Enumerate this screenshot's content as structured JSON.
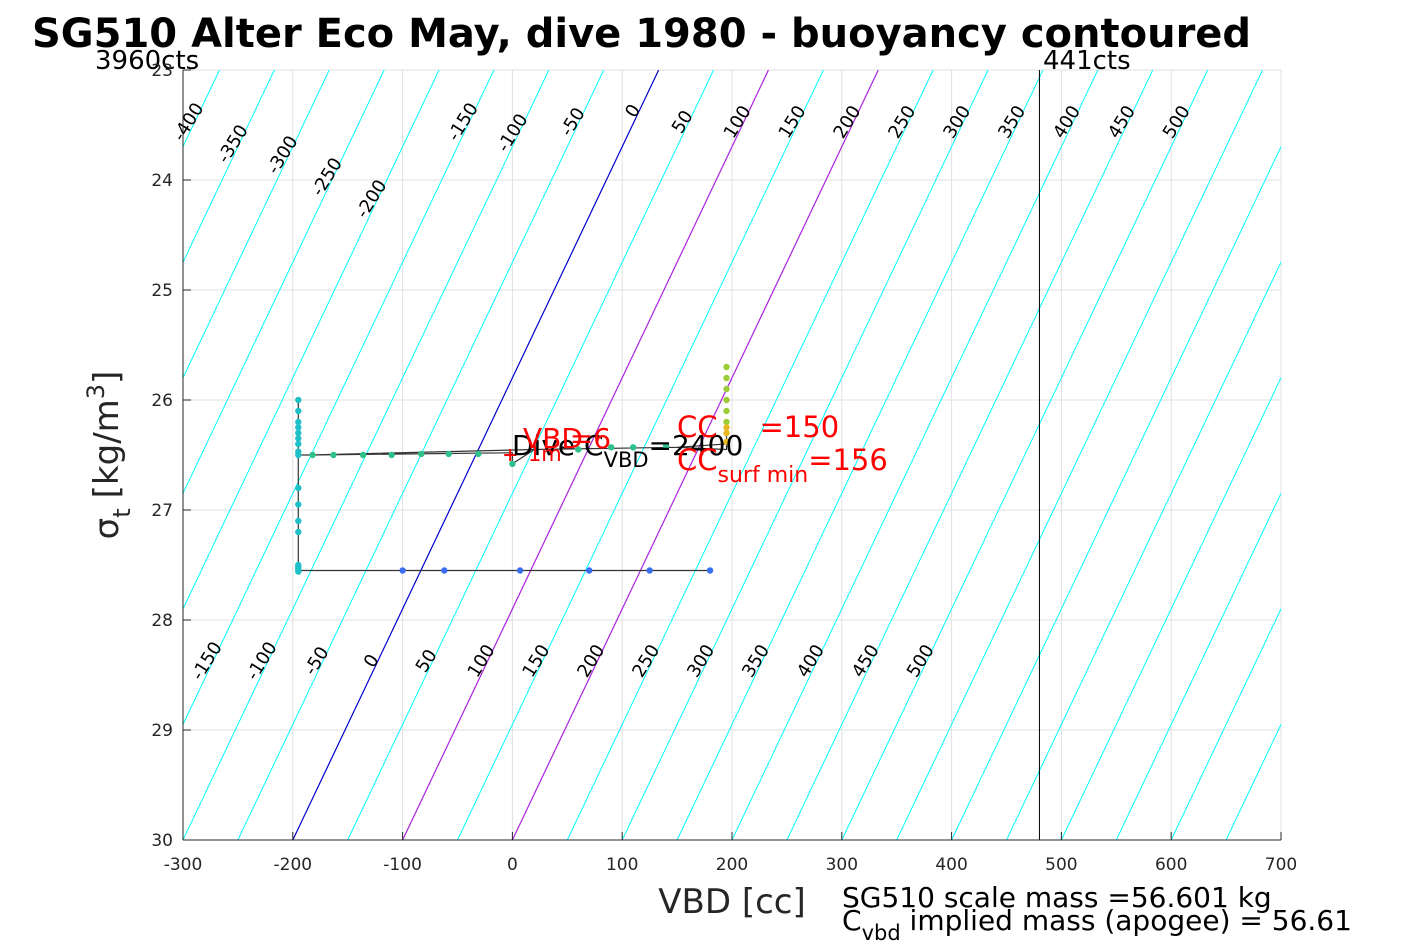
{
  "colors": {
    "contour": "#00ffff",
    "zero_line": "#0000cd",
    "magenta_line": "#aa22dd",
    "grid": "#e0e0e0",
    "red": "#ff0000"
  },
  "chart_data": {
    "type": "scatter",
    "title": "SG510 Alter Eco May, dive 1980 - buoyancy contoured",
    "xlabel": "VBD [cc]",
    "ylabel_main": "σ",
    "ylabel_sub": "t",
    "ylabel_units": "[kg/m",
    "ylabel_sup": "3",
    "ylabel_close": "]",
    "xlim": [
      -300,
      700
    ],
    "ylim": [
      23,
      30
    ],
    "y_reversed": true,
    "grid": true,
    "x_ticks": [
      -300,
      -200,
      -100,
      0,
      100,
      200,
      300,
      400,
      500,
      600,
      700
    ],
    "x_tick_labels": [
      "-300",
      "-200",
      "-100",
      "0",
      "100",
      "200",
      "300",
      "400",
      "500",
      "600",
      "700"
    ],
    "y_ticks": [
      23,
      24,
      25,
      26,
      27,
      28,
      29,
      30
    ],
    "y_tick_labels": [
      "23",
      "24",
      "25",
      "26",
      "27",
      "28",
      "29",
      "30"
    ],
    "corner_labels": {
      "left": "3960cts",
      "right": "441cts"
    },
    "vline_x": 480,
    "contour_slope_cc_per_sigma": -47.6,
    "contour_values": [
      -400,
      -350,
      -300,
      -250,
      -200,
      -150,
      -100,
      -50,
      0,
      50,
      100,
      150,
      200,
      250,
      300,
      350,
      400,
      450,
      500,
      550,
      600,
      650,
      700,
      750,
      800,
      850,
      900
    ],
    "zero_contour_value": 0,
    "magenta_contour_values": [
      100,
      200
    ],
    "contour_labels_top": {
      "sigma": 23.6,
      "values": [
        -400,
        -350,
        -300,
        -250,
        -200,
        -150,
        -100,
        -50,
        0,
        50,
        100,
        150,
        200,
        250,
        300,
        350,
        400,
        450,
        500
      ],
      "texts": [
        "-400",
        "-350",
        "-300",
        "-250",
        "-200",
        "-150",
        "-100",
        "-50",
        "0",
        "50",
        "100",
        "150",
        "200",
        "250",
        "300",
        "350",
        "400",
        "450",
        "500"
      ],
      "sigmas": [
        23.5,
        23.7,
        23.8,
        24.0,
        24.2,
        23.5,
        23.6,
        23.5,
        23.4,
        23.5,
        23.5,
        23.5,
        23.5,
        23.5,
        23.5,
        23.5,
        23.5,
        23.5,
        23.5
      ]
    },
    "contour_labels_bottom": {
      "values": [
        -150,
        -100,
        -50,
        0,
        50,
        100,
        150,
        200,
        250,
        300,
        350,
        400,
        450,
        500
      ],
      "texts": [
        "-150",
        "-100",
        "-50",
        "0",
        "50",
        "100",
        "150",
        "200",
        "250",
        "300",
        "350",
        "400",
        "450",
        "500"
      ],
      "sigma": 28.4
    },
    "profile_line": {
      "x": [
        -195,
        -195,
        -185,
        0,
        0,
        20,
        150,
        195,
        195,
        195,
        150,
        20,
        -185,
        -195,
        -195,
        -195,
        180
      ],
      "y": [
        26.0,
        26.5,
        26.5,
        26.48,
        26.58,
        26.45,
        26.43,
        26.45,
        26.3,
        26.4,
        26.43,
        26.45,
        26.5,
        26.5,
        27.2,
        27.55,
        27.55
      ]
    },
    "series": [
      {
        "color": "#20c0c8",
        "x": [
          -195,
          -195,
          -195,
          -195,
          -195,
          -195,
          -195,
          -195,
          -195,
          -195,
          -195,
          -195,
          -195,
          -195,
          -195,
          -195,
          -195
        ],
        "y": [
          26.0,
          26.1,
          26.2,
          26.3,
          26.4,
          26.47,
          26.5,
          26.8,
          26.95,
          27.1,
          27.2,
          27.5,
          27.52,
          27.54,
          27.56,
          26.25,
          26.35
        ]
      },
      {
        "color": "#2ec28a",
        "x": [
          -182,
          -163,
          -136,
          -110,
          -83,
          -58,
          -31,
          0,
          60,
          90,
          110,
          140
        ],
        "y": [
          26.5,
          26.5,
          26.5,
          26.5,
          26.49,
          26.49,
          26.49,
          26.58,
          26.45,
          26.43,
          26.43,
          26.42
        ]
      },
      {
        "color": "#3a6ef0",
        "x": [
          -100,
          -62,
          7,
          70,
          125,
          180
        ],
        "y": [
          27.55,
          27.55,
          27.55,
          27.55,
          27.55,
          27.55
        ]
      },
      {
        "color": "#9ccc38",
        "x": [
          195,
          195,
          195,
          195,
          195,
          195
        ],
        "y": [
          25.7,
          25.8,
          25.9,
          26.0,
          26.1,
          26.2
        ]
      },
      {
        "color": "#e8b820",
        "x": [
          195,
          195,
          195
        ],
        "y": [
          26.25,
          26.3,
          26.38
        ]
      }
    ],
    "marker_plus": {
      "x": -2,
      "y": 26.5,
      "color": "#ff0000"
    },
    "annotations": {
      "dive_main": "Dive C",
      "dive_sub": "VBD",
      "dive_value": "=2400",
      "vbd_main": "VBD",
      "vbd_sub": "1m",
      "vbd_value": "=6",
      "cc_main": "CC",
      "cc_value": "=150",
      "ccsurf_main": "CC",
      "ccsurf_sub": "surf min",
      "ccsurf_value": "=156"
    },
    "footer": {
      "line1": "SG510 scale mass =56.601 kg",
      "line2_main": "C",
      "line2_sub": "vbd",
      "line2_rest": " implied mass (apogee) = 56.61"
    }
  }
}
